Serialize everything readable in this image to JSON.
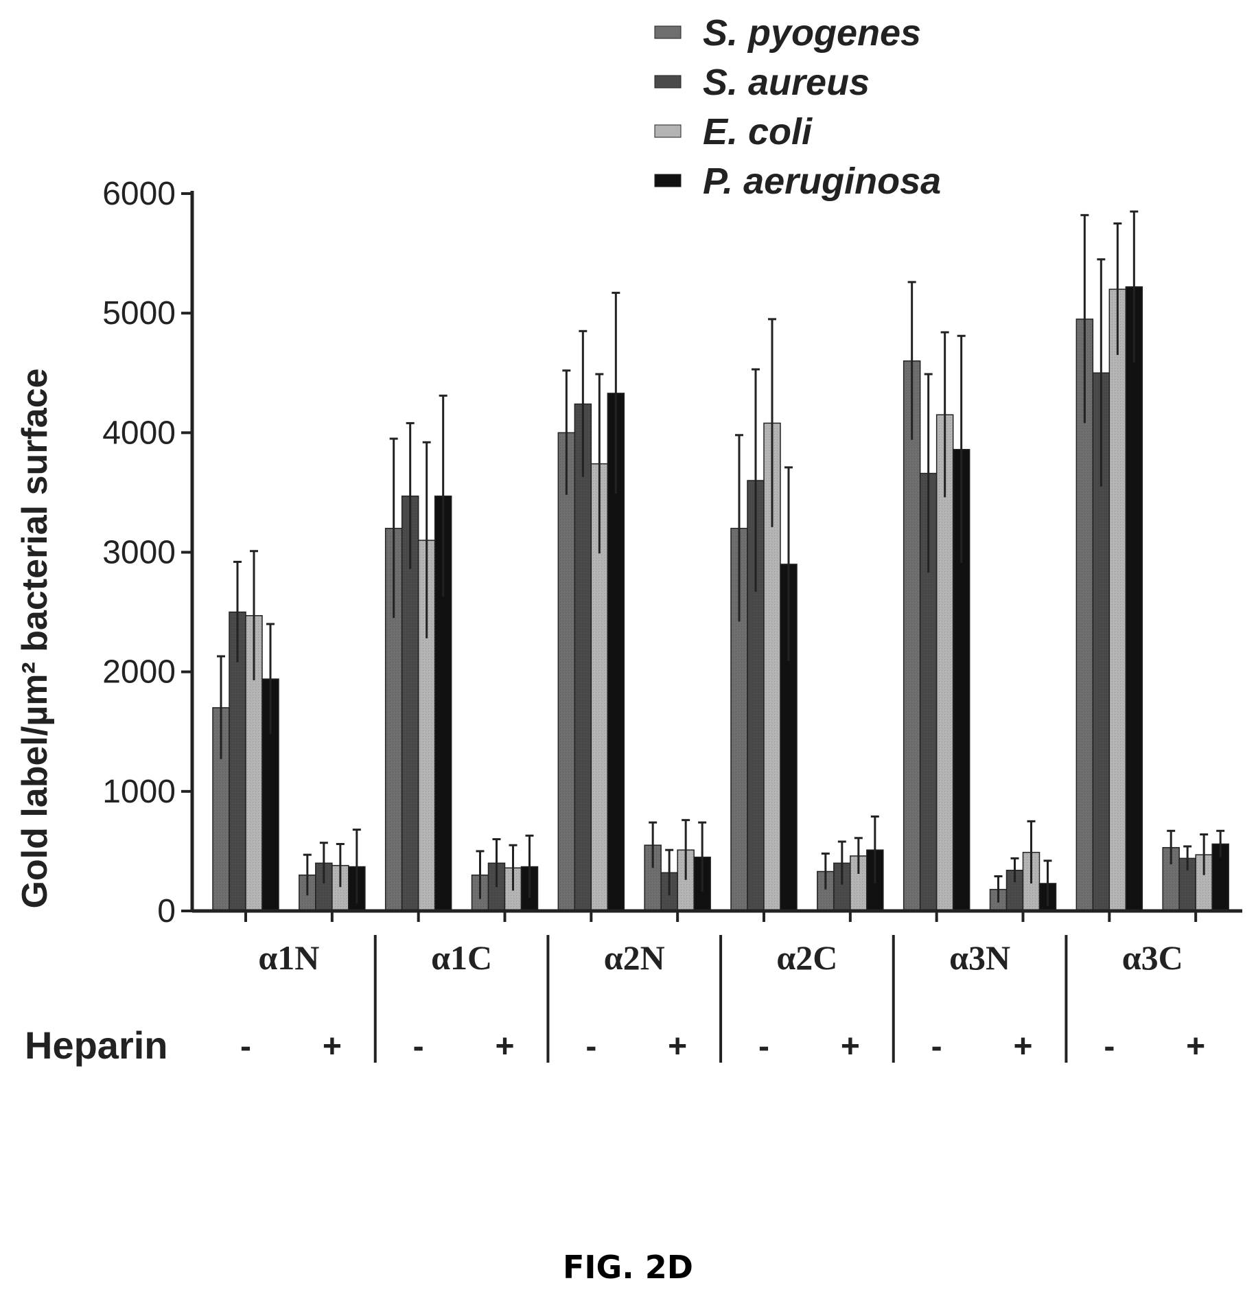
{
  "chart_data": {
    "type": "bar",
    "title": "",
    "ylabel": "Gold label/µm² bacterial surface",
    "ylim": [
      0,
      6000
    ],
    "yticks": [
      "0",
      "1000",
      "2000",
      "3000",
      "4000",
      "5000",
      "6000"
    ],
    "groups": [
      "α1N",
      "α1C",
      "α2N",
      "α2C",
      "α3N",
      "α3C"
    ],
    "row_label": "Heparin",
    "conditions": [
      "-",
      "+"
    ],
    "legend_position": "top-right",
    "series": [
      {
        "name": "S. pyogenes",
        "color": "#6e6e6e",
        "values": [
          1700,
          300,
          3200,
          300,
          4000,
          550,
          3200,
          330,
          4600,
          180,
          4950,
          530
        ],
        "errors": [
          430,
          170,
          750,
          200,
          520,
          190,
          780,
          150,
          660,
          110,
          870,
          140
        ]
      },
      {
        "name": "S. aureus",
        "color": "#4a4a4a",
        "values": [
          2500,
          400,
          3470,
          400,
          4240,
          320,
          3600,
          400,
          3660,
          340,
          4500,
          440
        ],
        "errors": [
          420,
          170,
          610,
          200,
          610,
          190,
          930,
          180,
          830,
          100,
          950,
          100
        ]
      },
      {
        "name": "E. coli",
        "color": "#b4b4b4",
        "values": [
          2470,
          380,
          3100,
          360,
          3740,
          510,
          4080,
          460,
          4150,
          490,
          5200,
          470
        ],
        "errors": [
          540,
          180,
          820,
          190,
          750,
          250,
          870,
          150,
          690,
          260,
          550,
          170
        ]
      },
      {
        "name": "P. aeruginosa",
        "color": "#111111",
        "values": [
          1940,
          370,
          3470,
          370,
          4330,
          450,
          2900,
          510,
          3860,
          230,
          5220,
          560
        ],
        "errors": [
          460,
          310,
          840,
          260,
          840,
          290,
          810,
          280,
          950,
          190,
          630,
          110
        ]
      }
    ]
  },
  "figure_label": "FIG. 2D"
}
